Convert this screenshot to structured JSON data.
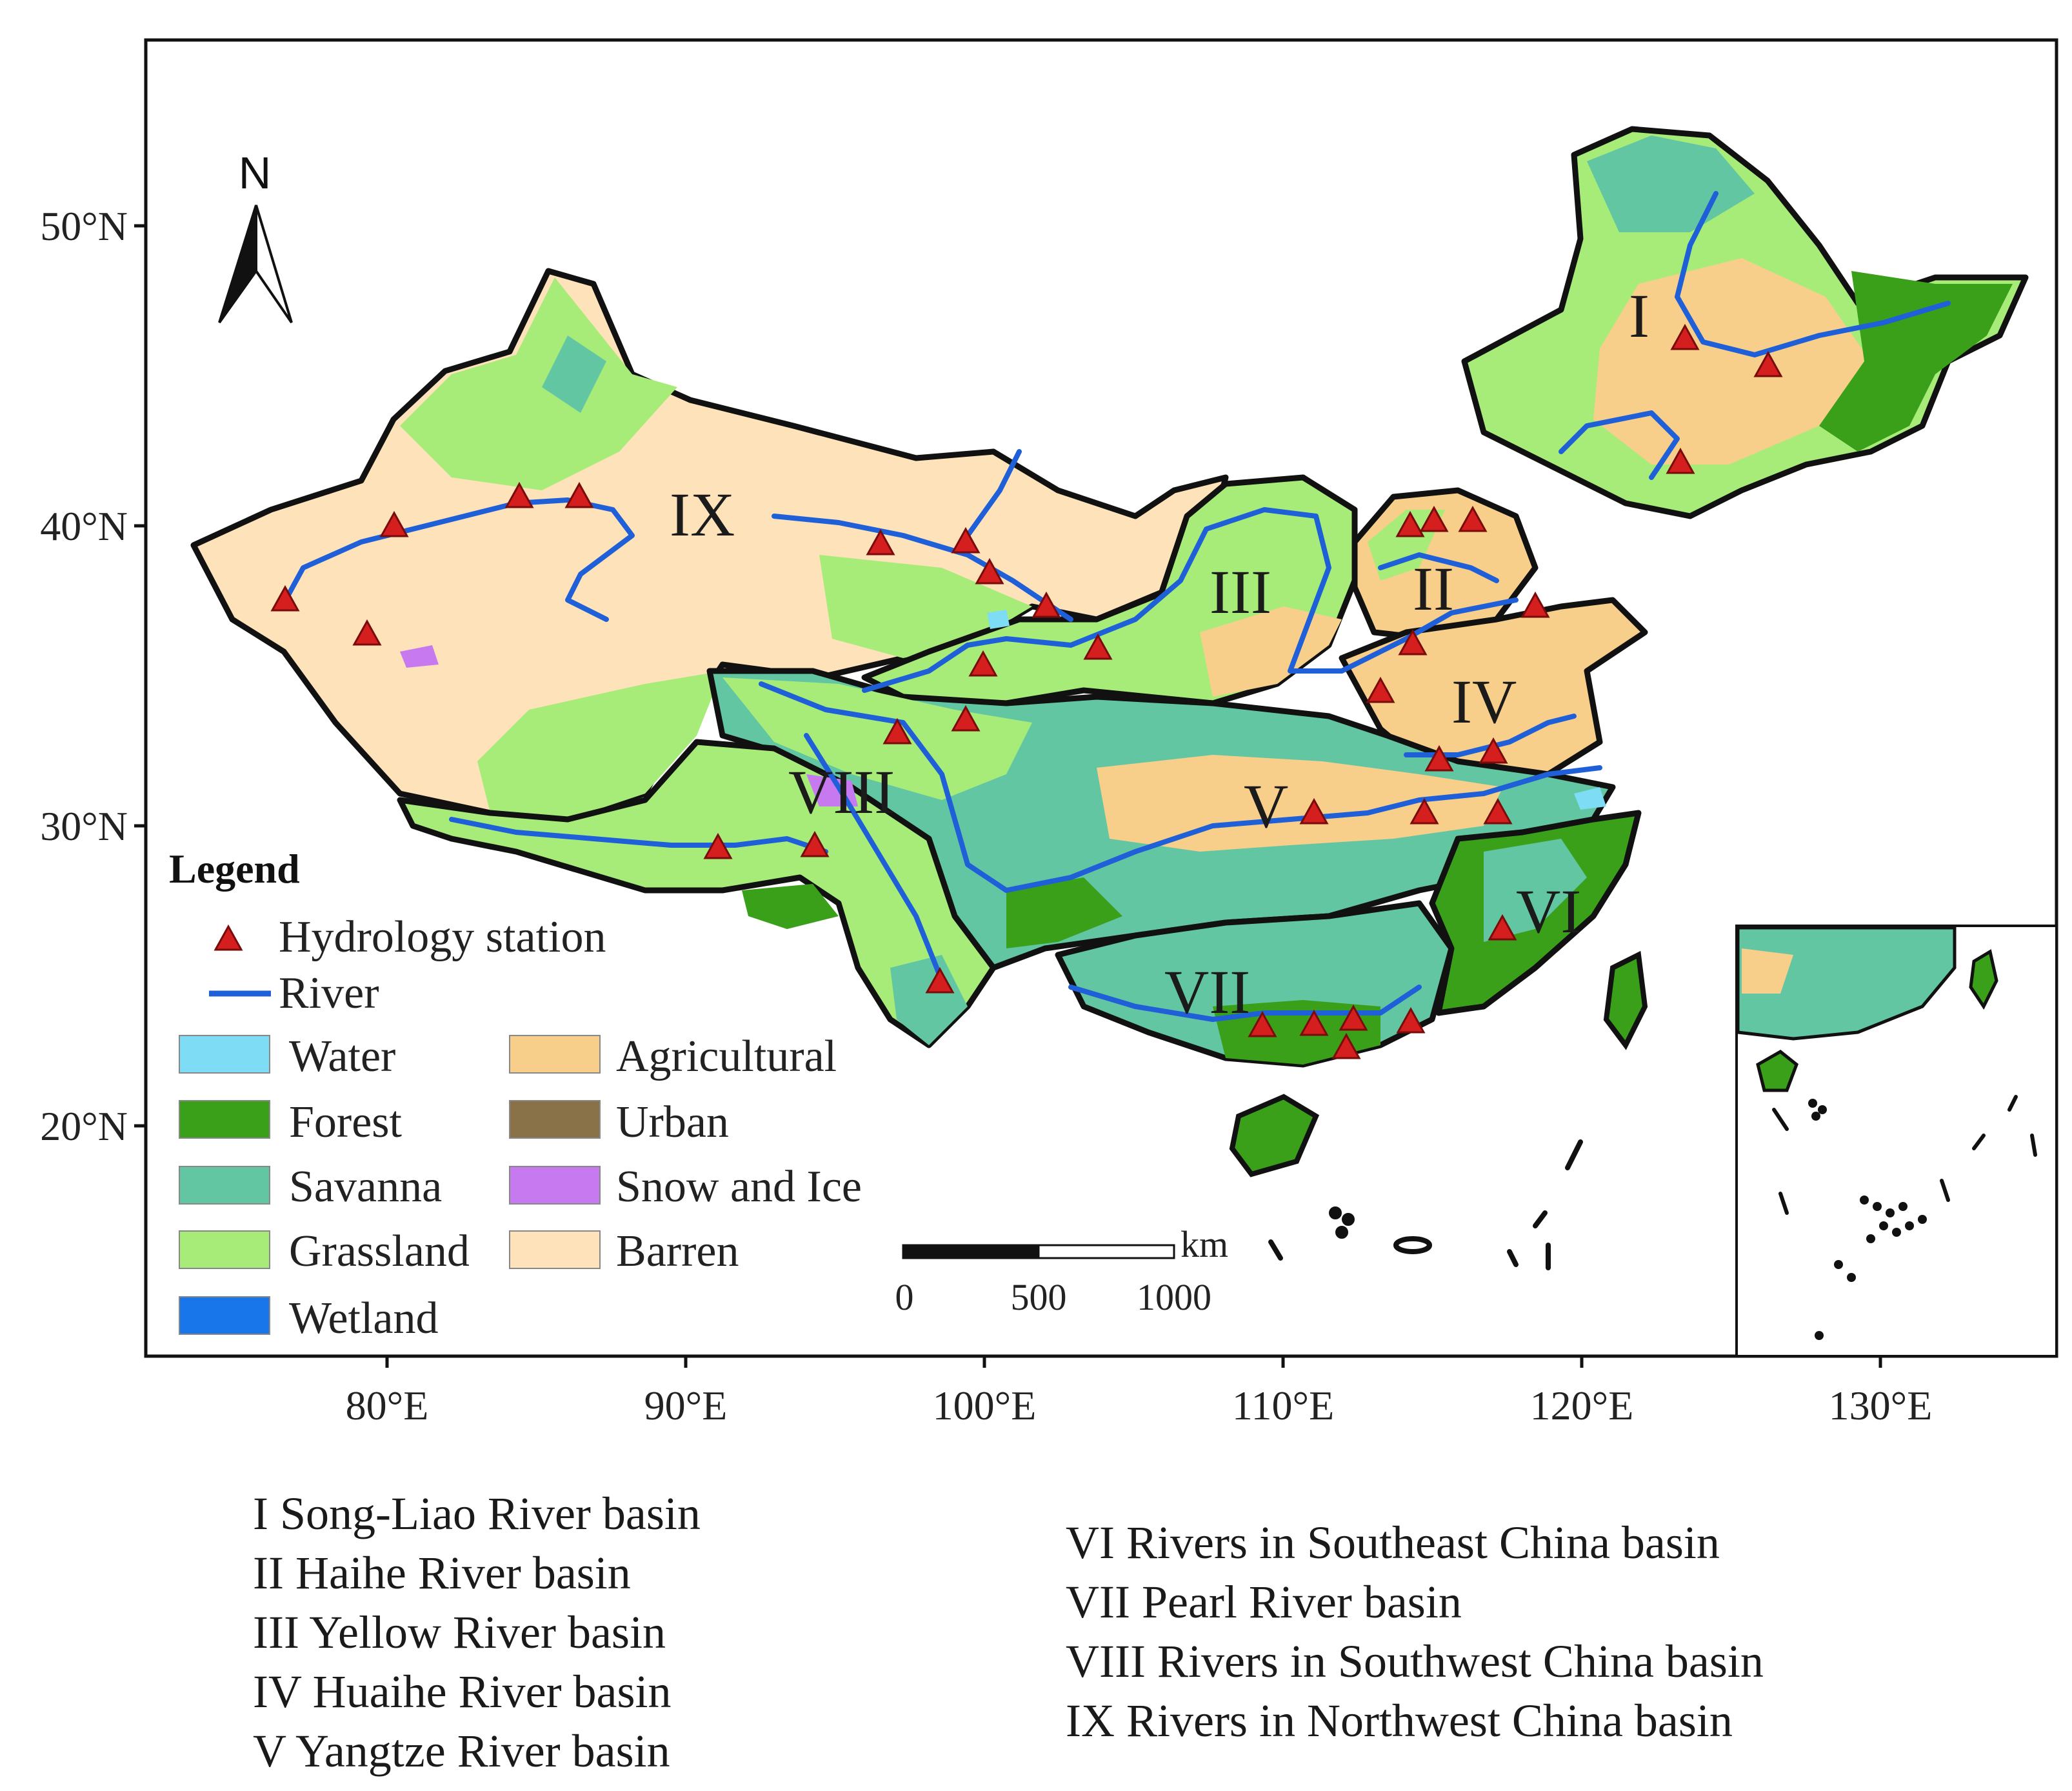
{
  "axes": {
    "lat_labels": [
      "50°N",
      "40°N",
      "30°N",
      "20°N"
    ],
    "lon_labels": [
      "80°E",
      "90°E",
      "100°E",
      "110°E",
      "120°E",
      "130°E"
    ]
  },
  "north_arrow": {
    "label": "N",
    "icon": "north-arrow-icon"
  },
  "basin_labels": [
    "I",
    "II",
    "III",
    "IV",
    "V",
    "VI",
    "VII",
    "VIII",
    "IX"
  ],
  "legend": {
    "title": "Legend",
    "station": {
      "label": "Hydrology station",
      "color": "#d51e1e"
    },
    "river": {
      "label": "River",
      "color": "#1f5fd8"
    },
    "classes": [
      {
        "label": "Water",
        "color": "#7fdcf5"
      },
      {
        "label": "Forest",
        "color": "#3aa01a"
      },
      {
        "label": "Savanna",
        "color": "#62c6a2"
      },
      {
        "label": "Grassland",
        "color": "#a7ec79"
      },
      {
        "label": "Wetland",
        "color": "#1976ea"
      },
      {
        "label": "Agricultural",
        "color": "#f7cf8a"
      },
      {
        "label": "Urban",
        "color": "#8a7248"
      },
      {
        "label": "Snow and Ice",
        "color": "#c77af0"
      },
      {
        "label": "Barren",
        "color": "#fde2ba"
      }
    ]
  },
  "scale_bar": {
    "unit": "km",
    "ticks": [
      "0",
      "500",
      "1000"
    ]
  },
  "captions": {
    "left": [
      "I  Song-Liao River basin",
      "II  Haihe River basin",
      "III  Yellow River basin",
      "IV  Huaihe River basin",
      "V  Yangtze River basin"
    ],
    "right": [
      "VI  Rivers in Southeast China basin",
      "VII  Pearl River basin",
      "VIII  Rivers in Southwest China basin",
      "IX  Rivers in Northwest China basin"
    ]
  }
}
